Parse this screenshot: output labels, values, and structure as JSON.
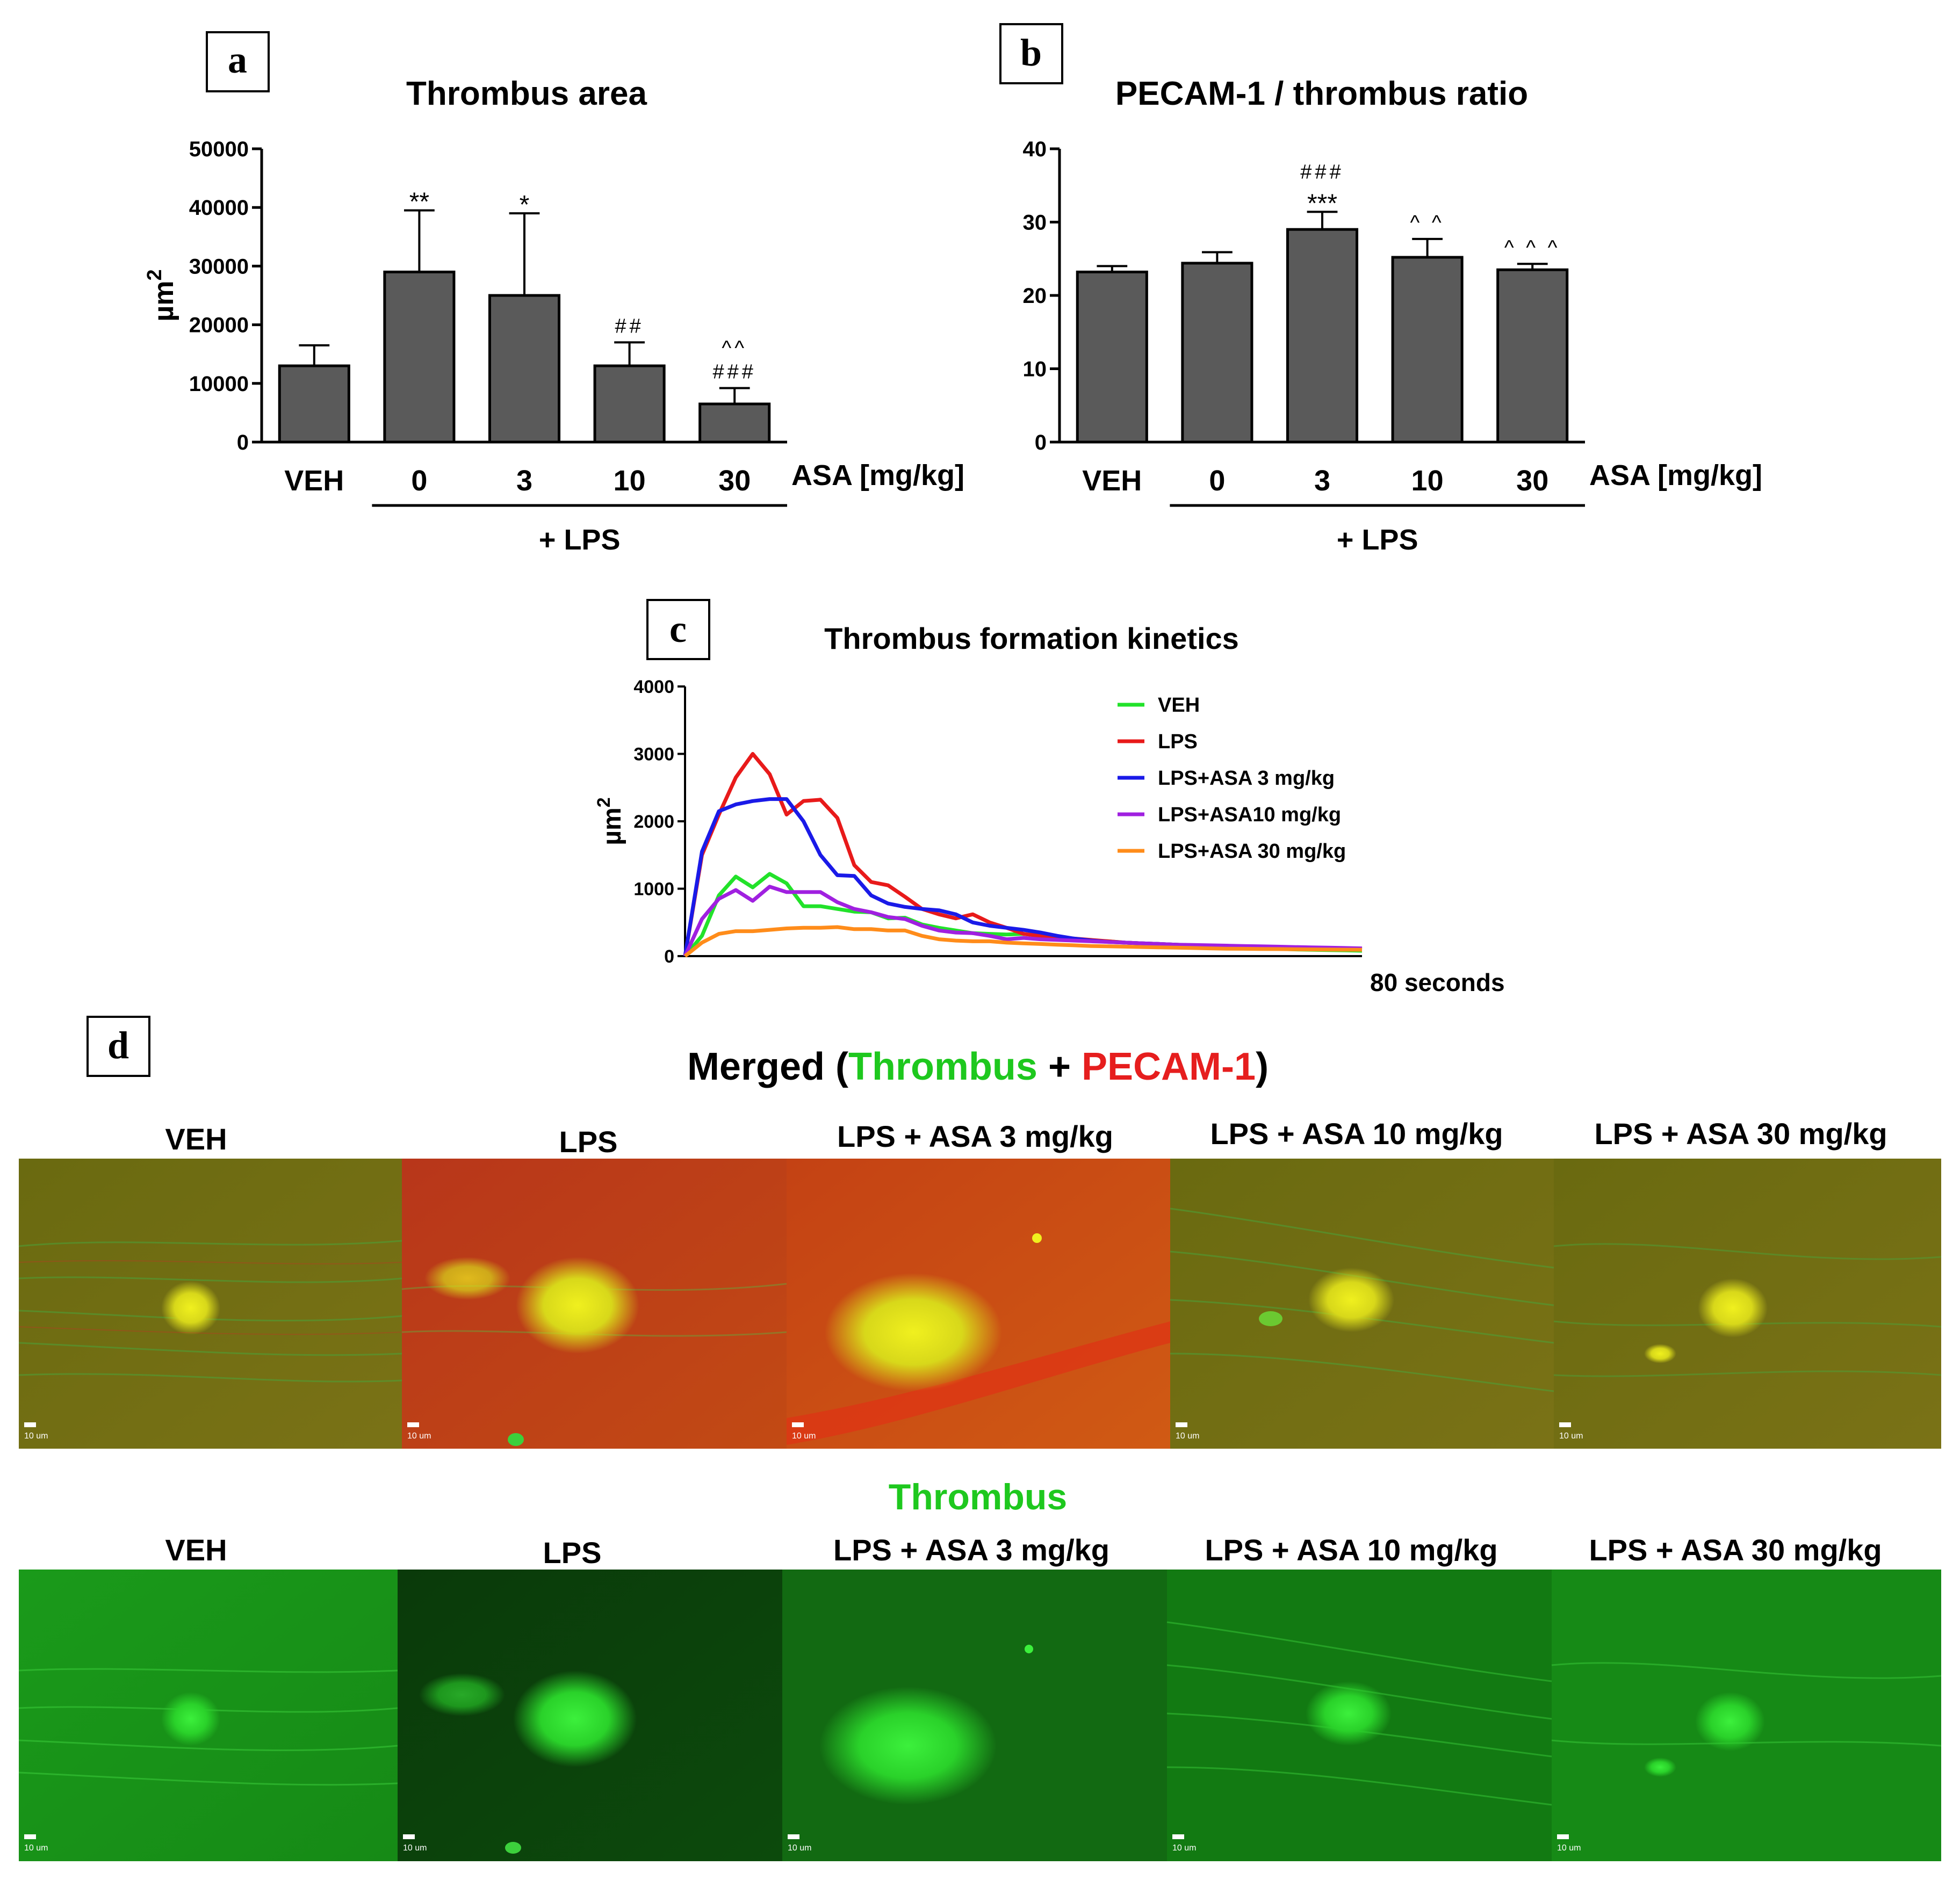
{
  "colors": {
    "bar_fill": "#5a5a5a",
    "thrombus_green": "#1ec81e",
    "pecam_red": "#e61e1e",
    "text": "#000000"
  },
  "panels": {
    "a": "a",
    "b": "b",
    "c": "c",
    "d": "d"
  },
  "chart_data": [
    {
      "id": "a",
      "type": "bar",
      "title": "Thrombus area",
      "ylabel": "µm",
      "ylabel_superscript": "2",
      "ylim": [
        0,
        50000
      ],
      "yticks": [
        "0",
        "10000",
        "20000",
        "30000",
        "40000",
        "50000"
      ],
      "ytick_values": [
        0,
        10000,
        20000,
        30000,
        40000,
        50000
      ],
      "categories": [
        "VEH",
        "0",
        "3",
        "10",
        "30"
      ],
      "values": [
        13000,
        29000,
        25000,
        13000,
        6500
      ],
      "errors": [
        3500,
        10500,
        14000,
        4000,
        2700
      ],
      "annotations": [
        [],
        [
          "**"
        ],
        [
          "*"
        ],
        [
          "##"
        ],
        [
          "###",
          "^^"
        ]
      ],
      "x_unit_label": "ASA [mg/kg]",
      "group_label": "+ LPS",
      "grid": false
    },
    {
      "id": "b",
      "type": "bar",
      "title": "PECAM-1 / thrombus ratio",
      "ylabel": "",
      "ylim": [
        0,
        40
      ],
      "yticks": [
        "0",
        "10",
        "20",
        "30",
        "40"
      ],
      "ytick_values": [
        0,
        10,
        20,
        30,
        40
      ],
      "categories": [
        "VEH",
        "0",
        "3",
        "10",
        "30"
      ],
      "values": [
        23.2,
        24.4,
        29.0,
        25.2,
        23.5
      ],
      "errors": [
        0.8,
        1.5,
        2.4,
        2.5,
        0.8
      ],
      "annotations": [
        [],
        [],
        [
          "***",
          "###"
        ],
        [
          "^ ^"
        ],
        [
          "^ ^ ^"
        ]
      ],
      "x_unit_label": "ASA [mg/kg]",
      "group_label": "+ LPS",
      "grid": false
    },
    {
      "id": "c",
      "type": "line",
      "title": "Thrombus formation kinetics",
      "ylabel": "µm",
      "ylabel_superscript": "2",
      "xlabel": "80 seconds",
      "ylim": [
        0,
        4000
      ],
      "yticks": [
        "0",
        "1000",
        "2000",
        "3000",
        "4000"
      ],
      "ytick_values": [
        0,
        1000,
        2000,
        3000,
        4000
      ],
      "x": [
        0,
        1,
        2,
        3,
        4,
        5,
        6,
        7,
        8,
        9,
        10,
        11,
        12,
        13,
        14,
        15,
        16,
        17,
        18,
        19,
        20,
        21,
        22,
        23,
        24,
        25,
        26,
        27,
        28,
        29,
        30,
        31,
        32,
        33,
        34,
        35,
        36,
        37,
        38,
        39,
        40
      ],
      "xlim": [
        0,
        40
      ],
      "legend_position": "top-right",
      "series": [
        {
          "name": "VEH",
          "color": "#22e22a",
          "values": [
            0,
            300,
            900,
            1180,
            1020,
            1220,
            1080,
            740,
            740,
            700,
            660,
            650,
            560,
            570,
            470,
            420,
            380,
            340,
            330,
            320,
            330,
            300,
            280,
            250,
            230,
            220,
            200,
            190,
            180,
            170,
            160,
            150,
            140,
            130,
            120,
            110,
            100,
            95,
            90,
            85,
            80
          ]
        },
        {
          "name": "LPS",
          "color": "#e81a1a",
          "values": [
            0,
            1500,
            2100,
            2650,
            3000,
            2700,
            2100,
            2300,
            2320,
            2050,
            1350,
            1100,
            1050,
            880,
            700,
            620,
            560,
            620,
            500,
            420,
            330,
            300,
            280,
            260,
            240,
            220,
            200,
            190,
            180,
            170,
            160,
            150,
            145,
            140,
            135,
            130,
            125,
            120,
            115,
            110,
            100
          ]
        },
        {
          "name": "LPS+ASA 3 mg/kg",
          "color": "#1a1ae8",
          "values": [
            0,
            1550,
            2150,
            2250,
            2300,
            2330,
            2330,
            2000,
            1500,
            1200,
            1190,
            900,
            780,
            730,
            700,
            680,
            620,
            500,
            450,
            420,
            390,
            350,
            300,
            260,
            230,
            210,
            200,
            190,
            180,
            170,
            160,
            155,
            150,
            145,
            140,
            135,
            130,
            125,
            120,
            115,
            110
          ]
        },
        {
          "name": "LPS+ASA10 mg/kg",
          "color": "#a020e0",
          "values": [
            0,
            550,
            850,
            980,
            820,
            1030,
            950,
            950,
            950,
            800,
            700,
            650,
            580,
            550,
            450,
            380,
            350,
            340,
            300,
            250,
            270,
            250,
            240,
            230,
            220,
            210,
            200,
            190,
            180,
            170,
            165,
            160,
            155,
            150,
            145,
            140,
            135,
            130,
            125,
            120,
            115
          ]
        },
        {
          "name": "LPS+ASA 30 mg/kg",
          "color": "#ff8c1a",
          "values": [
            0,
            200,
            330,
            370,
            370,
            390,
            410,
            420,
            420,
            430,
            400,
            400,
            380,
            380,
            300,
            250,
            230,
            220,
            220,
            200,
            190,
            180,
            170,
            160,
            150,
            145,
            140,
            135,
            130,
            125,
            120,
            115,
            110,
            108,
            106,
            104,
            102,
            100,
            98,
            96,
            95
          ]
        }
      ]
    }
  ],
  "panel_d": {
    "title_parts": [
      {
        "text": "Merged (",
        "color": "#000000"
      },
      {
        "text": "Thrombus",
        "color": "#1ec81e"
      },
      {
        "text": " + ",
        "color": "#000000"
      },
      {
        "text": "PECAM-1",
        "color": "#e61e1e"
      },
      {
        "text": ")",
        "color": "#000000"
      }
    ],
    "row1_labels": [
      "VEH",
      "LPS",
      "LPS + ASA 3 mg/kg",
      "LPS + ASA 10 mg/kg",
      "LPS + ASA 30 mg/kg"
    ],
    "row2_title": "Thrombus",
    "row2_labels": [
      "VEH",
      "LPS",
      "LPS + ASA 3 mg/kg",
      "LPS + ASA 10 mg/kg",
      "LPS + ASA 30 mg/kg"
    ],
    "scale_bar_label": "10 um"
  }
}
